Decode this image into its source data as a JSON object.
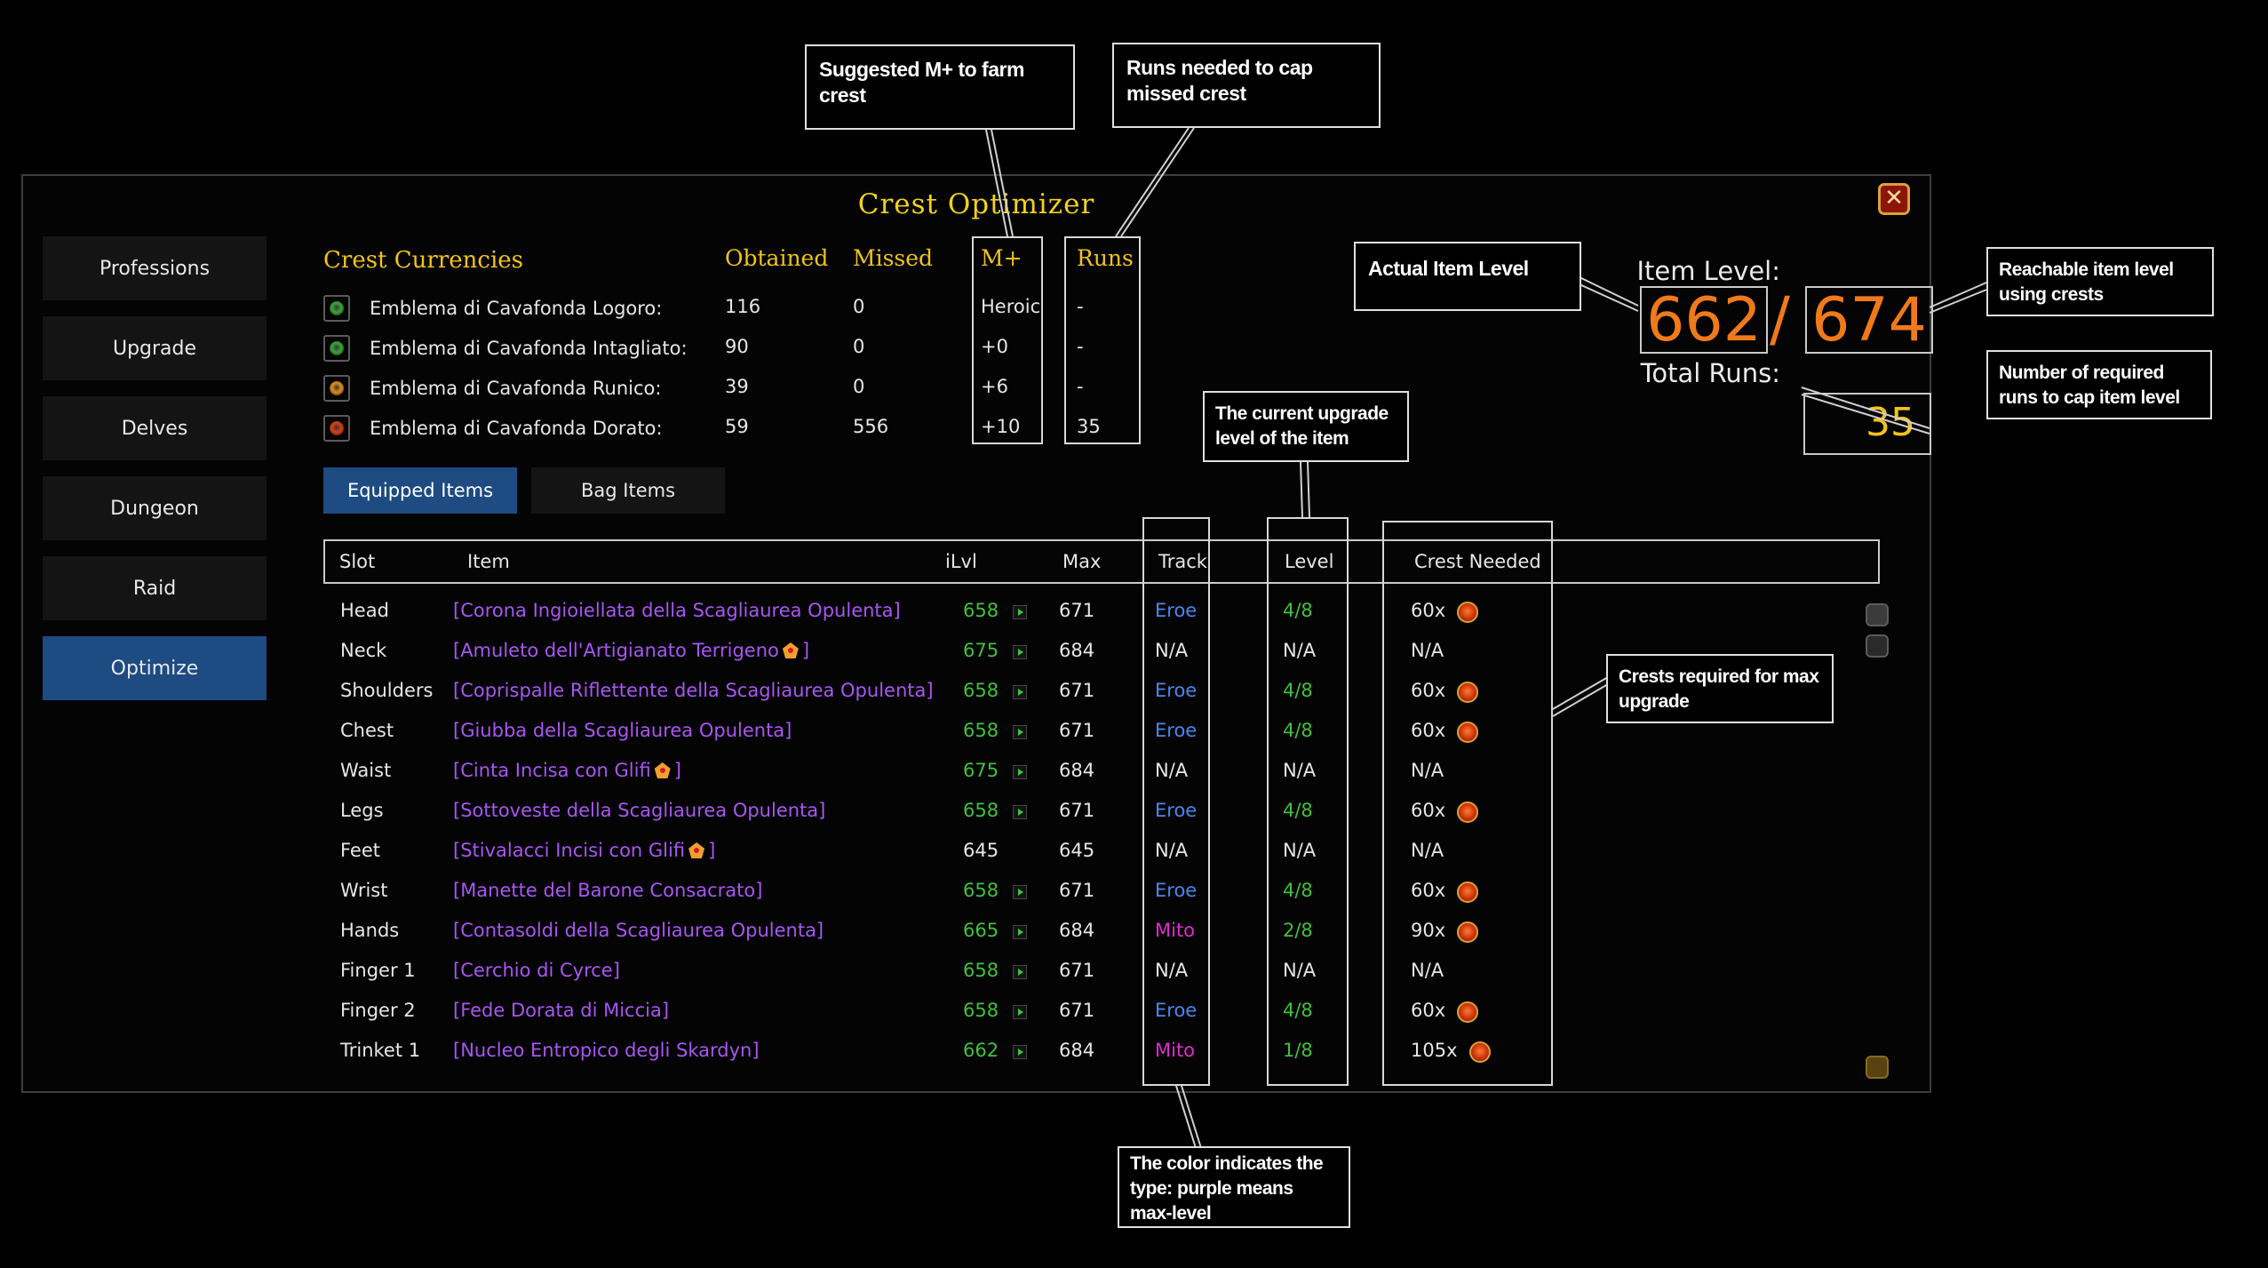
{
  "window": {
    "title": "Crest Optimizer",
    "close_glyph": "✕"
  },
  "sidebar": {
    "items": [
      {
        "label": "Professions"
      },
      {
        "label": "Upgrade"
      },
      {
        "label": "Delves"
      },
      {
        "label": "Dungeon"
      },
      {
        "label": "Raid"
      },
      {
        "label": "Optimize",
        "active": true
      }
    ]
  },
  "currencies": {
    "title": "Crest Currencies",
    "col_obtained": "Obtained",
    "col_missed": "Missed",
    "col_mplus": "M+",
    "col_runs": "Runs",
    "rows": [
      {
        "name": "Emblema di Cavafonda Logoro:",
        "obtained": "116",
        "missed": "0",
        "mplus": "Heroic",
        "runs": "-",
        "icon": "crest-green-icon",
        "color": "#3aa63a"
      },
      {
        "name": "Emblema di Cavafonda Intagliato:",
        "obtained": "90",
        "missed": "0",
        "mplus": "+0",
        "runs": "-",
        "icon": "crest-green-icon",
        "color": "#3aa63a"
      },
      {
        "name": "Emblema di Cavafonda Runico:",
        "obtained": "39",
        "missed": "0",
        "mplus": "+6",
        "runs": "-",
        "icon": "crest-orange-icon",
        "color": "#e0901c"
      },
      {
        "name": "Emblema di Cavafonda Dorato:",
        "obtained": "59",
        "missed": "556",
        "mplus": "+10",
        "runs": "35",
        "icon": "crest-red-icon",
        "color": "#d8401a"
      }
    ]
  },
  "tabs": {
    "equipped": "Equipped Items",
    "bag": "Bag Items"
  },
  "summary": {
    "item_level_label": "Item Level:",
    "current_ilvl": "662",
    "separator": "/",
    "reachable_ilvl": "674",
    "total_runs_label": "Total Runs:",
    "total_runs": "35"
  },
  "table": {
    "headers": {
      "slot": "Slot",
      "item": "Item",
      "ilvl": "iLvl",
      "max": "Max",
      "track": "Track",
      "level": "Level",
      "crest": "Crest Needed"
    },
    "rows": [
      {
        "slot": "Head",
        "item": "[Corona Ingioiellata della Scagliaurea Opulenta]",
        "gem": false,
        "ilvl": "658",
        "ilvl_color": "green",
        "arrow": true,
        "max": "671",
        "track": "Eroe",
        "track_color": "blue",
        "level": "4/8",
        "level_color": "green",
        "crest": "60x",
        "crest_icon": true
      },
      {
        "slot": "Neck",
        "item": "[Amuleto dell'Artigianato Terrigeno",
        "gem": true,
        "item_end": "]",
        "ilvl": "675",
        "ilvl_color": "green",
        "arrow": true,
        "max": "684",
        "track": "N/A",
        "track_color": "white",
        "level": "N/A",
        "level_color": "white",
        "crest": "N/A",
        "crest_icon": false
      },
      {
        "slot": "Shoulders",
        "item": "[Coprispalle Riflettente della Scagliaurea Opulenta]",
        "gem": false,
        "ilvl": "658",
        "ilvl_color": "green",
        "arrow": true,
        "max": "671",
        "track": "Eroe",
        "track_color": "blue",
        "level": "4/8",
        "level_color": "green",
        "crest": "60x",
        "crest_icon": true
      },
      {
        "slot": "Chest",
        "item": "[Giubba della Scagliaurea Opulenta]",
        "gem": false,
        "ilvl": "658",
        "ilvl_color": "green",
        "arrow": true,
        "max": "671",
        "track": "Eroe",
        "track_color": "blue",
        "level": "4/8",
        "level_color": "green",
        "crest": "60x",
        "crest_icon": true
      },
      {
        "slot": "Waist",
        "item": "[Cinta Incisa con Glifi",
        "gem": true,
        "item_end": "]",
        "ilvl": "675",
        "ilvl_color": "green",
        "arrow": true,
        "max": "684",
        "track": "N/A",
        "track_color": "white",
        "level": "N/A",
        "level_color": "white",
        "crest": "N/A",
        "crest_icon": false
      },
      {
        "slot": "Legs",
        "item": "[Sottoveste della Scagliaurea Opulenta]",
        "gem": false,
        "ilvl": "658",
        "ilvl_color": "green",
        "arrow": true,
        "max": "671",
        "track": "Eroe",
        "track_color": "blue",
        "level": "4/8",
        "level_color": "green",
        "crest": "60x",
        "crest_icon": true
      },
      {
        "slot": "Feet",
        "item": "[Stivalacci Incisi con Glifi",
        "gem": true,
        "item_end": "]",
        "ilvl": "645",
        "ilvl_color": "white",
        "arrow": false,
        "max": "645",
        "track": "N/A",
        "track_color": "white",
        "level": "N/A",
        "level_color": "white",
        "crest": "N/A",
        "crest_icon": false
      },
      {
        "slot": "Wrist",
        "item": "[Manette del Barone Consacrato]",
        "gem": false,
        "ilvl": "658",
        "ilvl_color": "green",
        "arrow": true,
        "max": "671",
        "track": "Eroe",
        "track_color": "blue",
        "level": "4/8",
        "level_color": "green",
        "crest": "60x",
        "crest_icon": true
      },
      {
        "slot": "Hands",
        "item": "[Contasoldi della Scagliaurea Opulenta]",
        "gem": false,
        "ilvl": "665",
        "ilvl_color": "green",
        "arrow": true,
        "max": "684",
        "track": "Mito",
        "track_color": "mito",
        "level": "2/8",
        "level_color": "green",
        "crest": "90x",
        "crest_icon": true
      },
      {
        "slot": "Finger 1",
        "item": "[Cerchio di Cyrce]",
        "gem": false,
        "ilvl": "658",
        "ilvl_color": "green",
        "arrow": true,
        "max": "671",
        "track": "N/A",
        "track_color": "white",
        "level": "N/A",
        "level_color": "white",
        "crest": "N/A",
        "crest_icon": false
      },
      {
        "slot": "Finger 2",
        "item": "[Fede Dorata di Miccia]",
        "gem": false,
        "ilvl": "658",
        "ilvl_color": "green",
        "arrow": true,
        "max": "671",
        "track": "Eroe",
        "track_color": "blue",
        "level": "4/8",
        "level_color": "green",
        "crest": "60x",
        "crest_icon": true
      },
      {
        "slot": "Trinket 1",
        "item": "[Nucleo Entropico degli Skardyn]",
        "gem": false,
        "ilvl": "662",
        "ilvl_color": "green",
        "arrow": true,
        "max": "684",
        "track": "Mito",
        "track_color": "mito",
        "level": "1/8",
        "level_color": "green",
        "crest": "105x",
        "crest_icon": true
      }
    ]
  },
  "callouts": {
    "suggested_mplus": "Suggested M+ to farm crest",
    "runs_needed": "Runs needed to cap missed crest",
    "actual_ilvl": "Actual Item Level",
    "reachable_ilvl": "Reachable item level using crests",
    "required_runs": "Number of required runs to cap item level",
    "upgrade_level": "The current upgrade level of the item",
    "crests_required": "Crests required for max upgrade",
    "color_type": "The color indicates the type: purple means max-level"
  }
}
